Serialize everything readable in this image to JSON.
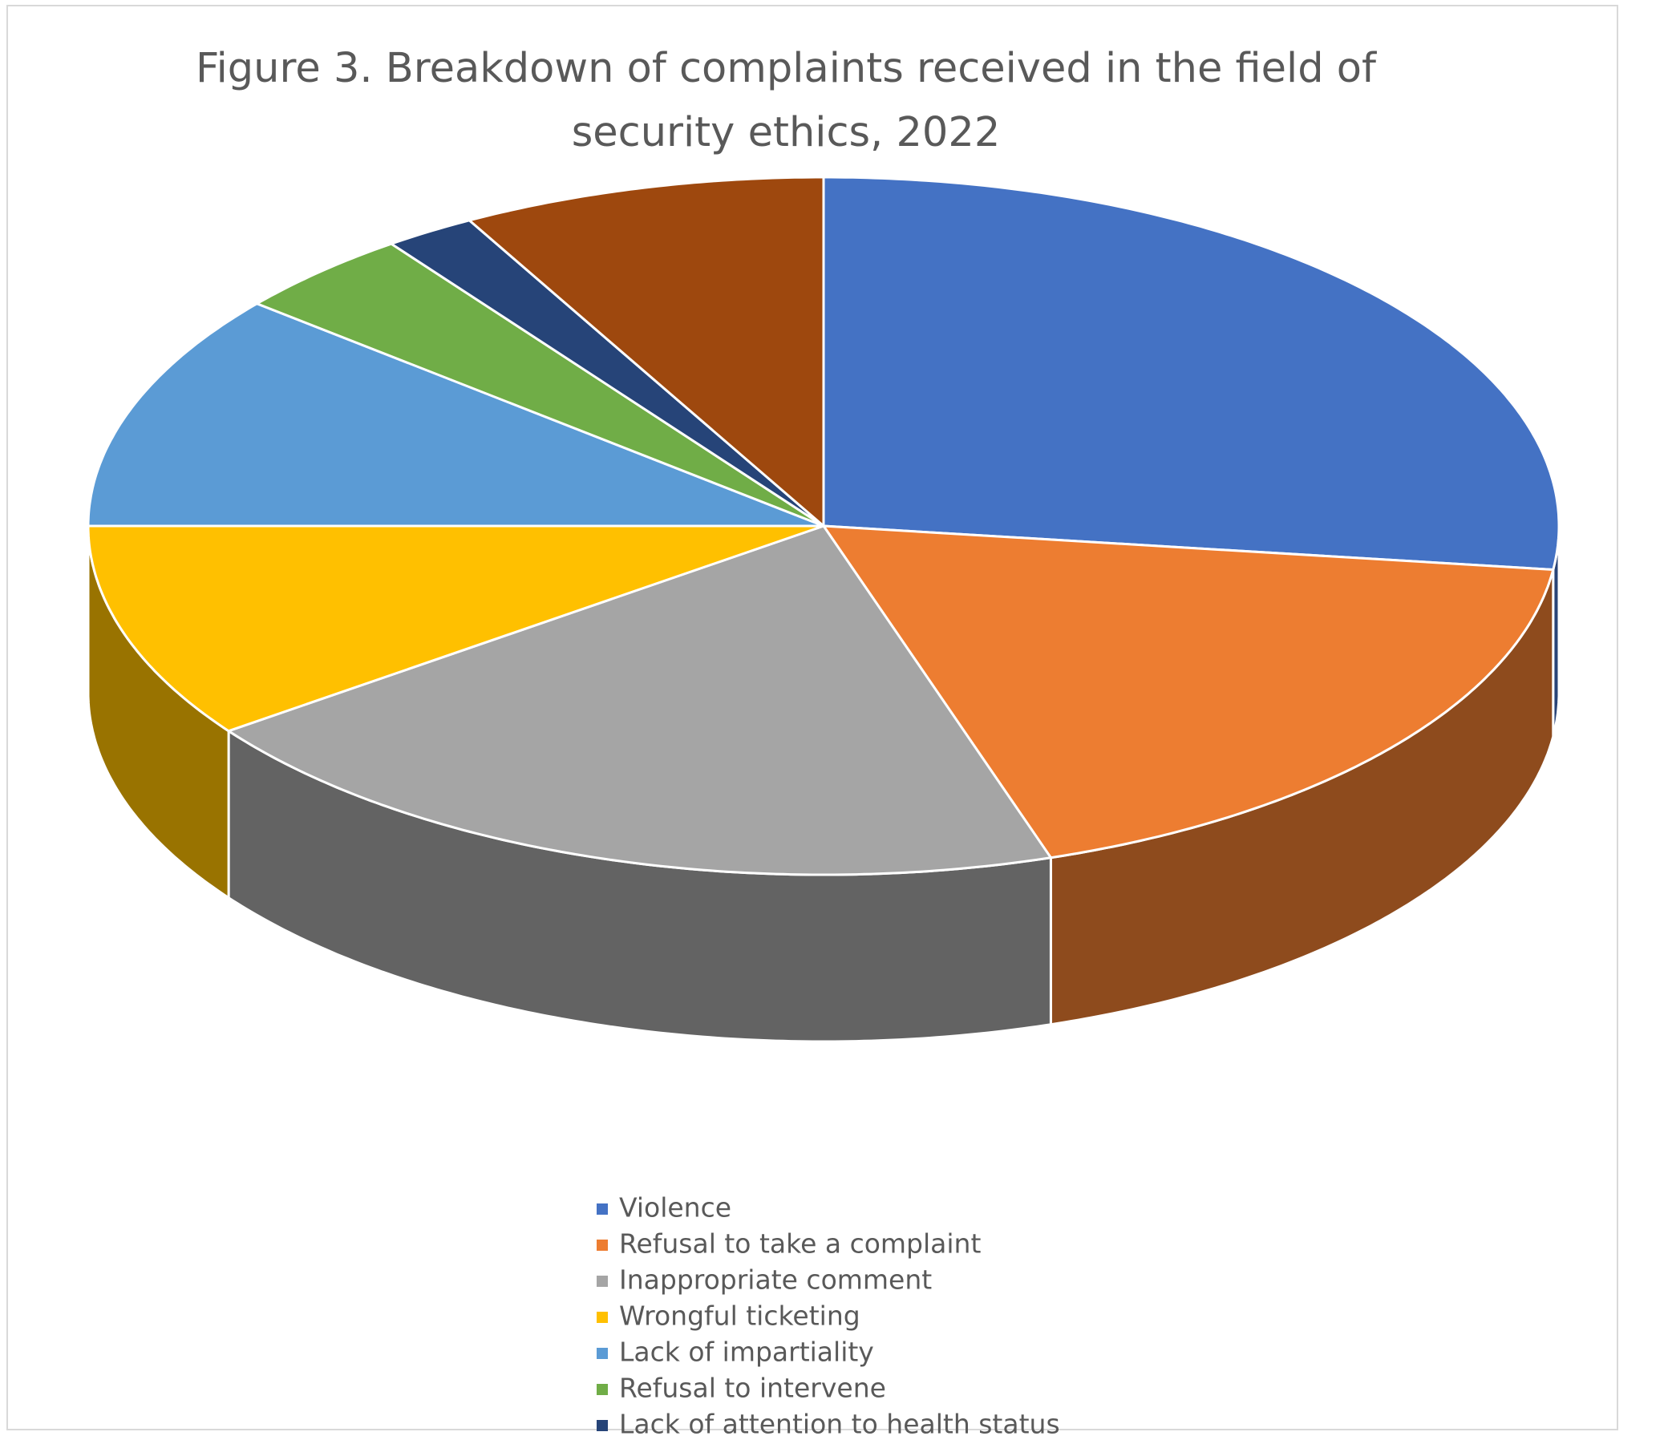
{
  "chart_data": {
    "type": "pie3d",
    "title": "Figure 3. Breakdown of complaints received in the field of security ethics, 2022",
    "categories": [
      "Violence",
      "Refusal to take a complaint",
      "Inappropriate comment",
      "Wrongful ticketing",
      "Lack of impartiality",
      "Refusal to intervene",
      "Lack of attention to health status",
      null
    ],
    "values": [
      27,
      18,
      20,
      10,
      11,
      4,
      2,
      8
    ],
    "colors": [
      "#4472c4",
      "#ed7d31",
      "#a5a5a5",
      "#ffc000",
      "#5b9bd5",
      "#70ad47",
      "#264478",
      "#9e480e"
    ]
  }
}
